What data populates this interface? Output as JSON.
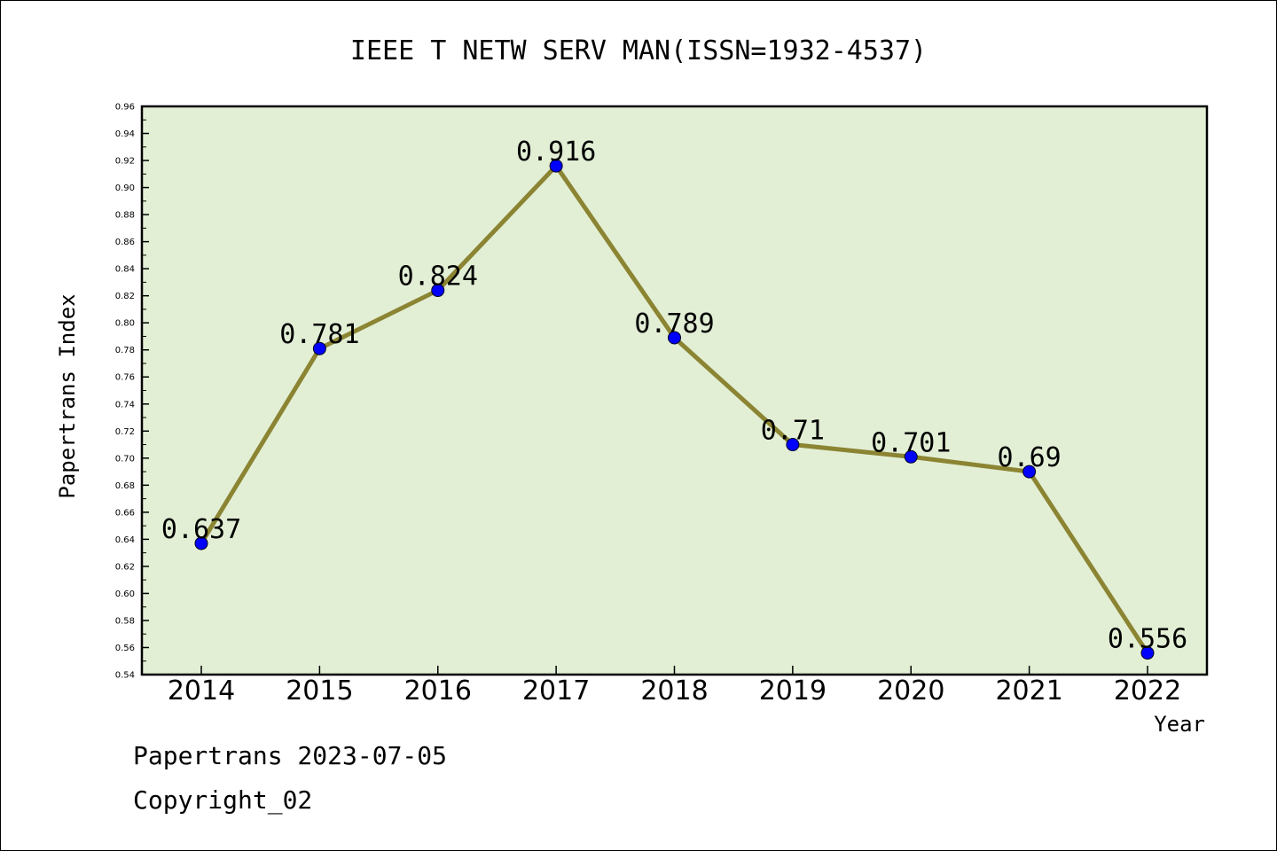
{
  "colors": {
    "plot_background": "#e2efd5",
    "line": "#8b8432",
    "marker": "#0000ff",
    "axis": "#000000"
  },
  "chart_data": {
    "type": "line",
    "title": "IEEE T NETW SERV MAN(ISSN=1932-4537)",
    "xlabel": "Year",
    "ylabel": "Papertrans Index",
    "x": [
      "2014",
      "2015",
      "2016",
      "2017",
      "2018",
      "2019",
      "2020",
      "2021",
      "2022"
    ],
    "values": [
      0.637,
      0.781,
      0.824,
      0.916,
      0.789,
      0.71,
      0.701,
      0.69,
      0.556
    ],
    "data_labels": [
      "0.637",
      "0.781",
      "0.824",
      "0.916",
      "0.789",
      "0.71",
      "0.701",
      "0.69",
      "0.556"
    ],
    "ylim": [
      0.54,
      0.96
    ],
    "yticks": [
      "0.54",
      "0.56",
      "0.58",
      "0.60",
      "0.62",
      "0.64",
      "0.66",
      "0.68",
      "0.70",
      "0.72",
      "0.74",
      "0.76",
      "0.78",
      "0.80",
      "0.82",
      "0.84",
      "0.86",
      "0.88",
      "0.90",
      "0.92",
      "0.94",
      "0.96"
    ],
    "grid": false,
    "legend": "none"
  },
  "footer": {
    "line1": "Papertrans 2023-07-05",
    "line2": "Copyright_02"
  }
}
